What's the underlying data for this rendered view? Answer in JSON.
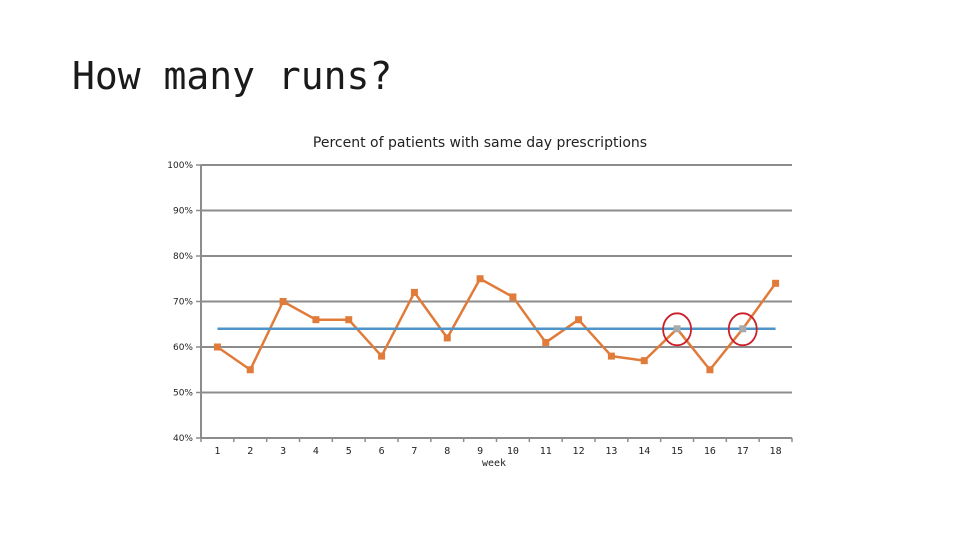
{
  "slide": {
    "title": "How many runs?"
  },
  "chart_data": {
    "type": "line",
    "title": "Percent of patients with same day prescriptions",
    "xlabel": "week",
    "ylabel": "",
    "ylim": [
      0.4,
      1.0
    ],
    "y_ticks": [
      "40%",
      "50%",
      "60%",
      "70%",
      "80%",
      "90%",
      "100%"
    ],
    "y_tick_values": [
      0.4,
      0.5,
      0.6,
      0.7,
      0.8,
      0.9,
      1.0
    ],
    "categories": [
      "1",
      "2",
      "3",
      "4",
      "5",
      "6",
      "7",
      "8",
      "9",
      "10",
      "11",
      "12",
      "13",
      "14",
      "15",
      "16",
      "17",
      "18"
    ],
    "grid": true,
    "series": [
      {
        "values": [
          0.6,
          0.55,
          0.7,
          0.66,
          0.66,
          0.58,
          0.72,
          0.62,
          0.75,
          0.71,
          0.61,
          0.66,
          0.58,
          0.57,
          0.64,
          0.55,
          0.64,
          0.74
        ],
        "color": "#e07b39"
      },
      {
        "values": [
          0.64,
          0.64,
          0.64,
          0.64,
          0.64,
          0.64,
          0.64,
          0.64,
          0.64,
          0.64,
          0.64,
          0.64,
          0.64,
          0.64,
          0.64,
          0.64,
          0.64,
          0.64
        ],
        "color": "#4f94c8"
      }
    ],
    "highlighted_points": [
      "15",
      "17"
    ],
    "highlight_color": "#cc1f2a",
    "highlighted_marker_color": "#a9a9a9"
  }
}
